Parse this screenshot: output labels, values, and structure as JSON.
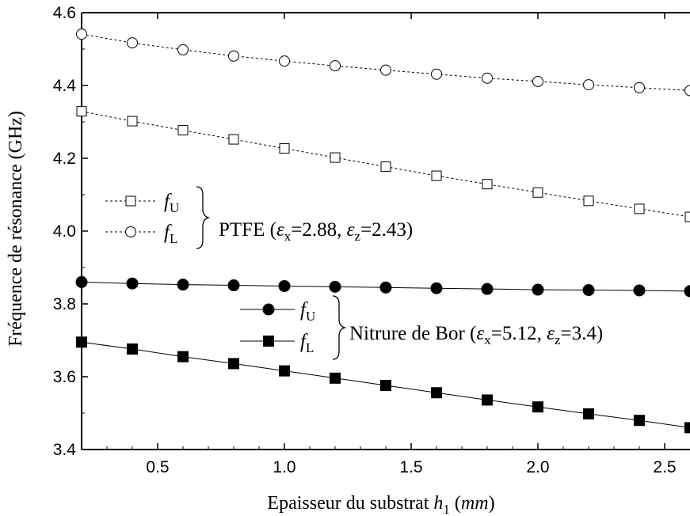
{
  "chart_data": {
    "type": "line",
    "xlabel_parts": [
      "Epaisseur du substrat ",
      "h",
      "1",
      " (",
      "mm",
      ")"
    ],
    "ylabel": "Fréquence de résonance (GHz)",
    "xlim": [
      0.2,
      2.6
    ],
    "ylim": [
      3.4,
      4.6
    ],
    "xticks": [
      0.5,
      1.0,
      1.5,
      2.0,
      2.5
    ],
    "xtick_labels": [
      "0.5",
      "1.0",
      "1.5",
      "2.0",
      "2.5"
    ],
    "yticks": [
      3.4,
      3.6,
      3.8,
      4.0,
      4.2,
      4.4,
      4.6
    ],
    "ytick_labels": [
      "3.4",
      "3.6",
      "3.8",
      "4.0",
      "4.2",
      "4.4",
      "4.6"
    ],
    "x": [
      0.2,
      0.4,
      0.6,
      0.8,
      1.0,
      1.2,
      1.4,
      1.6,
      1.8,
      2.0,
      2.2,
      2.4,
      2.6
    ],
    "series": [
      {
        "name": "f_U",
        "group": "PTFE",
        "marker": "open-square",
        "dash": true,
        "values": [
          4.329,
          4.302,
          4.277,
          4.252,
          4.227,
          4.202,
          4.177,
          4.152,
          4.129,
          4.106,
          4.083,
          4.061,
          4.039
        ]
      },
      {
        "name": "f_L",
        "group": "PTFE",
        "marker": "open-circle",
        "dash": true,
        "values": [
          4.541,
          4.517,
          4.498,
          4.481,
          4.467,
          4.454,
          4.442,
          4.431,
          4.42,
          4.411,
          4.402,
          4.394,
          4.386
        ]
      },
      {
        "name": "f_U",
        "group": "Nitrure de Bor",
        "marker": "filled-circle",
        "dash": false,
        "values": [
          3.86,
          3.856,
          3.853,
          3.851,
          3.849,
          3.847,
          3.845,
          3.843,
          3.841,
          3.839,
          3.838,
          3.837,
          3.835
        ]
      },
      {
        "name": "f_L",
        "group": "Nitrure de Bor",
        "marker": "filled-square",
        "dash": false,
        "values": [
          3.695,
          3.676,
          3.655,
          3.636,
          3.616,
          3.596,
          3.576,
          3.556,
          3.536,
          3.517,
          3.498,
          3.48,
          3.46
        ]
      }
    ],
    "legend": {
      "groups": [
        {
          "label": "PTFE",
          "ex": "2.88",
          "ez": "2.43",
          "entries": [
            {
              "f": "f",
              "sub": "U"
            },
            {
              "f": "f",
              "sub": "L"
            }
          ]
        },
        {
          "label": "Nitrure de Bor",
          "ex": "5.12",
          "ez": "3.4",
          "entries": [
            {
              "f": "f",
              "sub": "U"
            },
            {
              "f": "f",
              "sub": "L"
            }
          ]
        }
      ],
      "eps_symbol": "ε",
      "eps_x_sub": "x",
      "eps_z_sub": "z"
    },
    "grid": false
  }
}
